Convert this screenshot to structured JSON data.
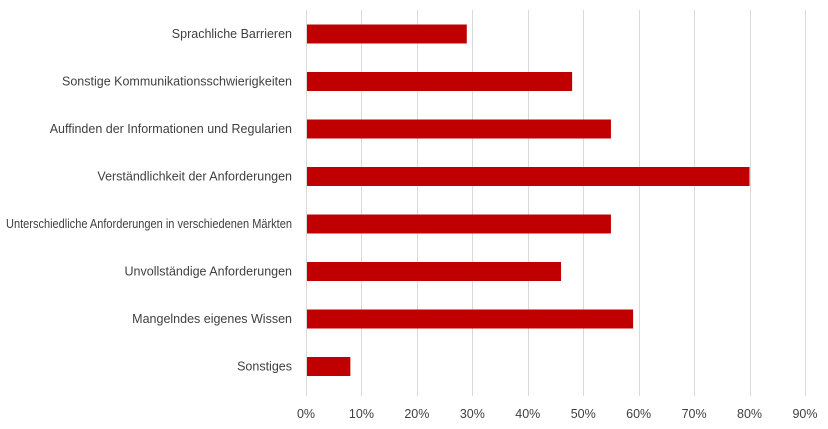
{
  "chart_data": {
    "type": "bar",
    "orientation": "horizontal",
    "title": "",
    "xlabel": "",
    "ylabel": "",
    "categories": [
      "Sprachliche Barrieren",
      "Sonstige Kommunikationsschwierigkeiten",
      "Auffinden der Informationen und Regularien",
      "Verständlichkeit der Anforderungen",
      "Unterschiedliche Anforderungen in verschiedenen Märkten",
      "Unvollständige Anforderungen",
      "Mangelndes eigenes Wissen",
      "Sonstiges"
    ],
    "values": [
      29,
      48,
      55,
      80,
      55,
      46,
      59,
      8
    ],
    "xlim": [
      0,
      90
    ],
    "x_ticks": [
      0,
      10,
      20,
      30,
      40,
      50,
      60,
      70,
      80,
      90
    ],
    "tick_suffix": "%",
    "grid": true,
    "bar_color": "#c00000"
  }
}
